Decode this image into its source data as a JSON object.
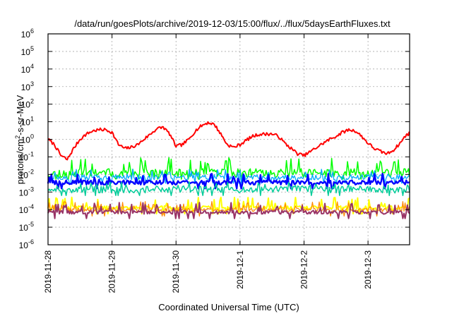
{
  "chart_data": {
    "type": "line",
    "title": "/data/run/goesPlots/archive/2019-12-03/15:00/flux/../flux/5daysEarthFluxes.txt",
    "xlabel": "Coordinated Universal Time (UTC)",
    "ylabel": {
      "base": "protons/cm",
      "sup": "2",
      "rest": "-s-sr-MeV"
    },
    "yscale": "log",
    "ylim_exp": [
      -6,
      6
    ],
    "y_ticks": [
      {
        "base": "10",
        "exp": "-6"
      },
      {
        "base": "10",
        "exp": "-5"
      },
      {
        "base": "10",
        "exp": "-4"
      },
      {
        "base": "10",
        "exp": "-3"
      },
      {
        "base": "10",
        "exp": "-2"
      },
      {
        "base": "10",
        "exp": "-1"
      },
      {
        "base": "10",
        "exp": "0"
      },
      {
        "base": "10",
        "exp": "1"
      },
      {
        "base": "10",
        "exp": "2"
      },
      {
        "base": "10",
        "exp": "3"
      },
      {
        "base": "10",
        "exp": "4"
      },
      {
        "base": "10",
        "exp": "5"
      },
      {
        "base": "10",
        "exp": "6"
      }
    ],
    "x_ticks": [
      "2019-11-28",
      "2019-11-29",
      "2019-11-30",
      "2019-12-1",
      "2019-12-2",
      "2019-12-3"
    ],
    "x_tick_values": [
      0,
      1,
      2,
      3,
      4,
      5
    ],
    "xlim_days": [
      0,
      5.65
    ],
    "grid": true,
    "legend": "none",
    "series": [
      {
        "color": "#ff0000",
        "x": [
          0,
          0.1,
          0.2,
          0.3,
          0.4,
          0.5,
          0.6,
          0.7,
          0.8,
          0.9,
          1.0,
          1.1,
          1.2,
          1.3,
          1.4,
          1.5,
          1.6,
          1.7,
          1.8,
          1.9,
          2.0,
          2.1,
          2.2,
          2.3,
          2.4,
          2.5,
          2.6,
          2.7,
          2.8,
          2.9,
          3.0,
          3.1,
          3.2,
          3.3,
          3.4,
          3.5,
          3.6,
          3.7,
          3.8,
          3.9,
          4.0,
          4.1,
          4.2,
          4.3,
          4.4,
          4.5,
          4.6,
          4.7,
          4.8,
          4.9,
          5.0,
          5.1,
          5.2,
          5.3,
          5.4,
          5.5,
          5.6,
          5.65
        ],
        "y": [
          1.0,
          0.5,
          0.12,
          0.07,
          0.3,
          1.0,
          2.0,
          3.0,
          3.5,
          3.5,
          2.5,
          0.5,
          0.3,
          0.35,
          0.5,
          1.0,
          2.0,
          4.0,
          5.0,
          2.0,
          0.4,
          0.5,
          1.0,
          3.0,
          6.0,
          9.0,
          7.0,
          2.0,
          0.5,
          0.35,
          0.5,
          0.9,
          1.5,
          1.9,
          2.0,
          2.0,
          1.5,
          0.6,
          0.3,
          0.15,
          0.12,
          0.2,
          0.35,
          0.6,
          1.0,
          1.5,
          2.5,
          3.5,
          3.0,
          1.5,
          0.6,
          0.3,
          0.2,
          0.15,
          0.25,
          0.6,
          1.8,
          2.2
        ]
      },
      {
        "color": "#00ff00",
        "base": 0.012,
        "spike": 0.09,
        "noise": 0.5,
        "seed": 11,
        "width": 1.5
      },
      {
        "color": "#00aaff",
        "base": 0.007,
        "spike": 0.02,
        "noise": 0.3,
        "seed": 23,
        "width": 1.3
      },
      {
        "color": "#0000ff",
        "base": 0.0035,
        "spike": 0.012,
        "noise": 0.25,
        "seed": 37,
        "width": 2.4
      },
      {
        "color": "#00cc99",
        "base": 0.0014,
        "spike": 0.004,
        "noise": 0.4,
        "seed": 51,
        "width": 1.5
      },
      {
        "color": "#ffff00",
        "base": 0.00013,
        "spike": 0.0005,
        "noise": 0.2,
        "seed": 67,
        "width": 2.0
      },
      {
        "color": "#ff8800",
        "base": 9.5e-05,
        "spike": 0.0003,
        "noise": 0.2,
        "seed": 79,
        "width": 1.2
      },
      {
        "color": "#993366",
        "base": 7e-05,
        "spike": 0.00025,
        "noise": 0.2,
        "seed": 89,
        "width": 2.0
      }
    ]
  }
}
